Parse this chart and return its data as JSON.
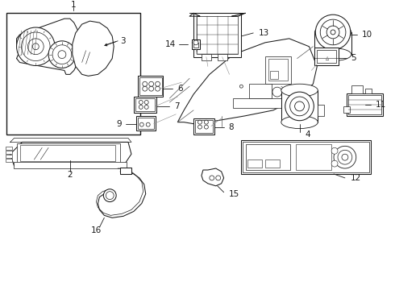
{
  "bg_color": "#ffffff",
  "line_color": "#1a1a1a",
  "label_fontsize": 7.5,
  "lw": 0.75,
  "fig_w": 4.9,
  "fig_h": 3.6,
  "dpi": 100
}
